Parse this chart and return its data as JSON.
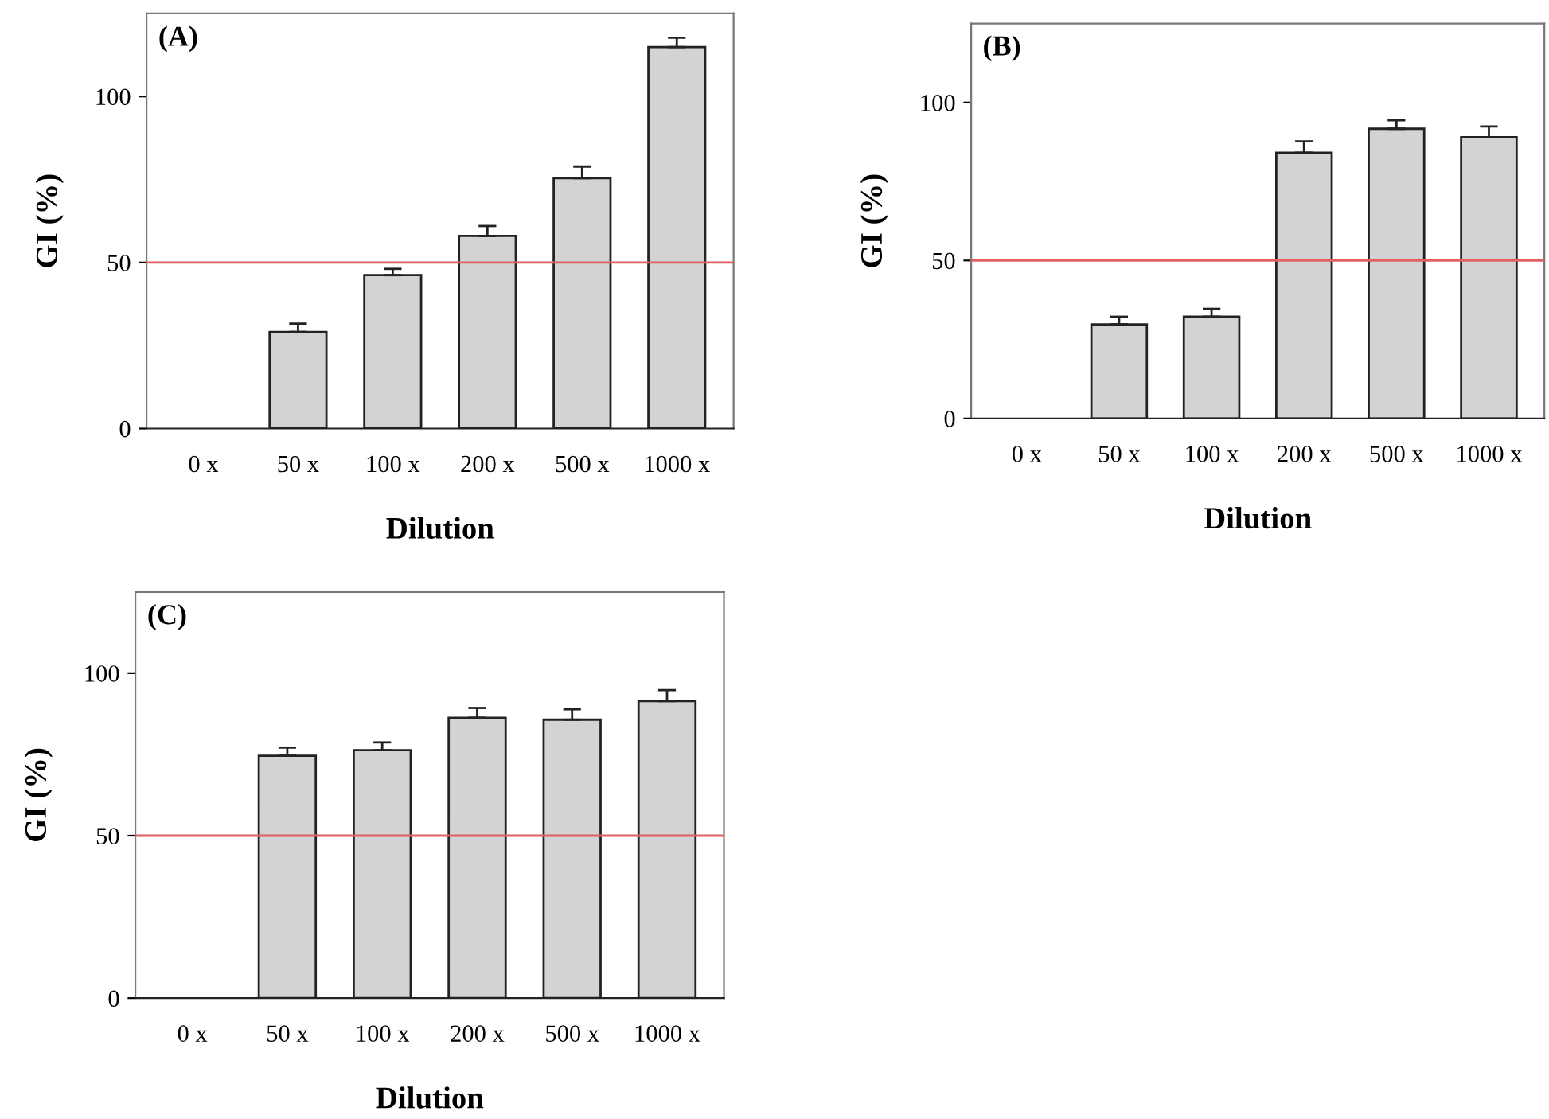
{
  "chart_data": [
    {
      "type": "bar",
      "xlabel": "Dilution",
      "ylabel": "GI (%)",
      "annotations": [
        "(A)"
      ],
      "categories": [
        "0 x",
        "50 x",
        "100 x",
        "200 x",
        "500 x",
        "1000 x"
      ],
      "values": [
        0,
        29.1,
        46.2,
        58,
        75.4,
        114.9
      ],
      "errors": [
        null,
        [
          29.1,
          31.6
        ],
        [
          46.2,
          48.1
        ],
        [
          58,
          61
        ],
        [
          75.4,
          78.9
        ],
        [
          114.9,
          117.7
        ]
      ],
      "color": "#d3d3d3",
      "ylim": [
        0,
        125
      ],
      "yticks": [
        0,
        50,
        100
      ],
      "grid": false,
      "ref_lines": [
        {
          "axis": "y",
          "value": 50,
          "color": "#e06060"
        }
      ]
    },
    {
      "type": "bar",
      "xlabel": "Dilution",
      "ylabel": "GI (%)",
      "annotations": [
        "(B)"
      ],
      "categories": [
        "0 x",
        "50 x",
        "100 x",
        "200 x",
        "500 x",
        "1000 x"
      ],
      "values": [
        0,
        29.8,
        32.2,
        84.1,
        91.7,
        89
      ],
      "errors": [
        null,
        [
          29.8,
          32.2
        ],
        [
          32.2,
          34.7
        ],
        [
          84.1,
          87.7
        ],
        [
          91.7,
          94.4
        ],
        [
          89,
          92.4
        ]
      ],
      "color": "#d3d3d3",
      "ylim": [
        0,
        125
      ],
      "yticks": [
        0,
        50,
        100
      ],
      "grid": false,
      "ref_lines": [
        {
          "axis": "y",
          "value": 50,
          "color": "#e06060"
        }
      ]
    },
    {
      "type": "bar",
      "xlabel": "Dilution",
      "ylabel": "GI (%)",
      "annotations": [
        "(C)"
      ],
      "categories": [
        "0 x",
        "50 x",
        "100 x",
        "200 x",
        "500 x",
        "1000 x"
      ],
      "values": [
        0,
        74.6,
        76.3,
        86.3,
        85.7,
        91.4
      ],
      "errors": [
        null,
        [
          74.6,
          77.1
        ],
        [
          76.3,
          78.7
        ],
        [
          86.3,
          89.3
        ],
        [
          85.7,
          88.9
        ],
        [
          91.4,
          94.8
        ]
      ],
      "color": "#d3d3d3",
      "ylim": [
        0,
        125
      ],
      "yticks": [
        0,
        50,
        100
      ],
      "grid": false,
      "ref_lines": [
        {
          "axis": "y",
          "value": 50,
          "color": "#e06060"
        }
      ]
    }
  ]
}
